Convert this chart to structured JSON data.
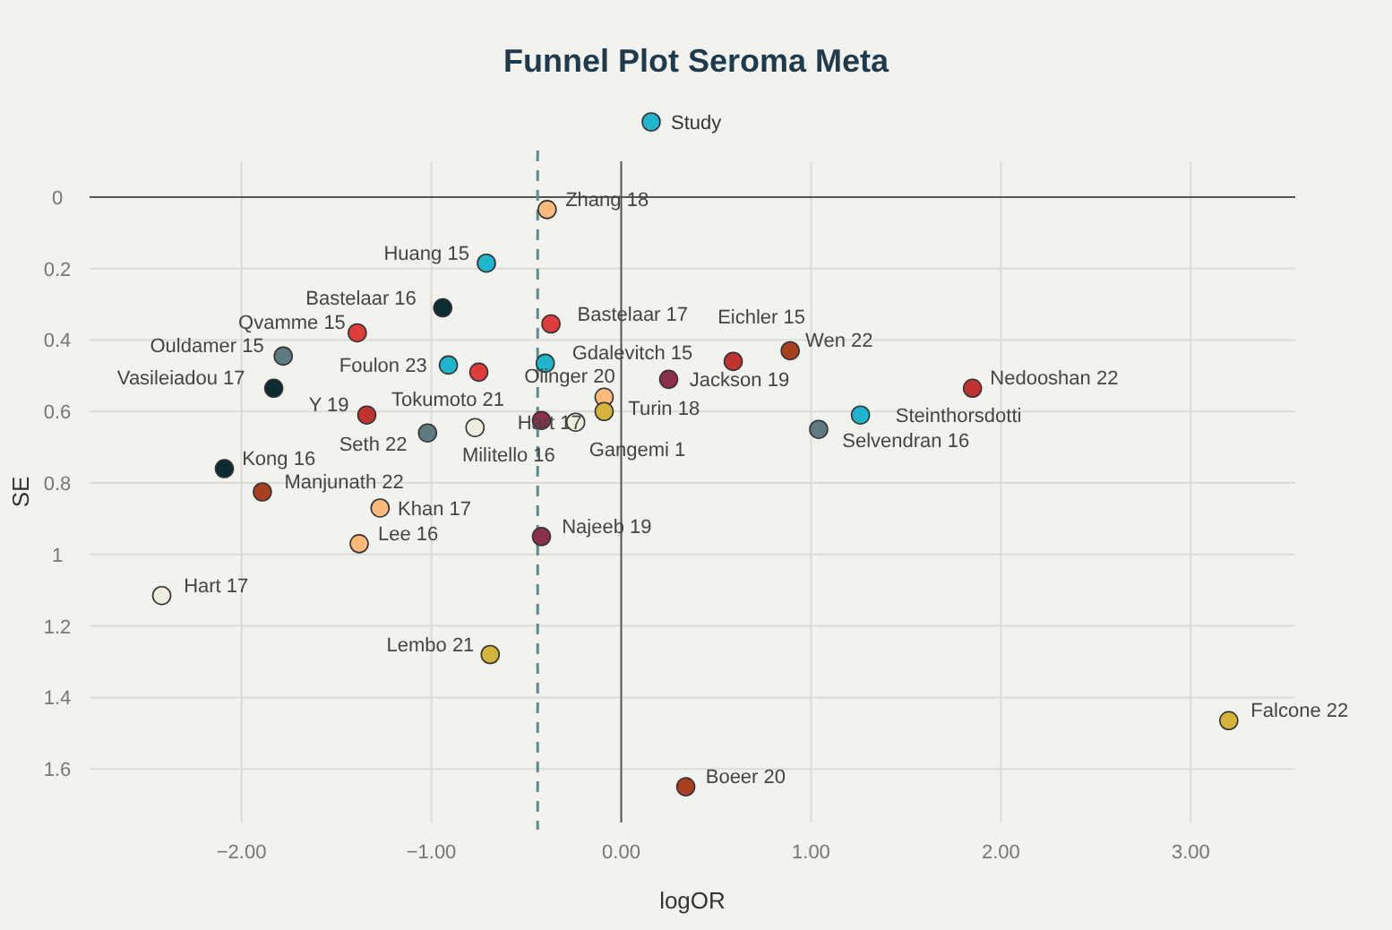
{
  "chart_data": {
    "type": "scatter",
    "title": "Funnel Plot Seroma Meta",
    "xlabel": "logOR",
    "ylabel": "SE",
    "x": [
      -0.39,
      -0.71,
      -0.94,
      -0.37,
      -1.39,
      -1.78,
      -1.83,
      -0.91,
      -0.75,
      -0.4,
      -1.34,
      -1.02,
      -0.77,
      -0.42,
      -0.24,
      -0.09,
      -0.09,
      0.25,
      0.59,
      0.89,
      1.04,
      1.26,
      1.85,
      -2.09,
      -1.89,
      -1.27,
      -1.38,
      -0.42,
      -2.42,
      -0.69,
      0.34,
      3.2
    ],
    "series": [
      {
        "name": "Study",
        "color": "#1fb5cc",
        "values": [
          0.035,
          0.185,
          0.31,
          0.355,
          0.38,
          0.445,
          0.535,
          0.47,
          0.49,
          0.465,
          0.61,
          0.66,
          0.645,
          0.625,
          0.63,
          0.56,
          0.6,
          0.51,
          0.46,
          0.43,
          0.65,
          0.61,
          0.535,
          0.76,
          0.825,
          0.87,
          0.97,
          0.95,
          1.115,
          1.28,
          1.65,
          1.465
        ],
        "colors": [
          "#ffb97a",
          "#1fb5cc",
          "#0d2b33",
          "#e03c3c",
          "#e03c3c",
          "#5e7b84",
          "#0d2b33",
          "#1fb5cc",
          "#e03c3c",
          "#1fb5cc",
          "#c0332f",
          "#5e7b84",
          "#efeedd",
          "#8e2f4a",
          "#efeedd",
          "#ffb97a",
          "#d4b43a",
          "#8e2f4a",
          "#c0332f",
          "#a8401f",
          "#5e7b84",
          "#1fb5cc",
          "#c0332f",
          "#0d2b33",
          "#a8401f",
          "#ffb97a",
          "#ffb97a",
          "#8e2f4a",
          "#efeedd",
          "#d4b43a",
          "#a8401f",
          "#d4b43a"
        ]
      }
    ],
    "annotations": [
      {
        "text": "Zhang 18",
        "x": -0.39,
        "y": 0.035
      },
      {
        "text": "Huang 15",
        "x": -0.71,
        "y": 0.185
      },
      {
        "text": "Bastelaar 16",
        "x": -0.94,
        "y": 0.31
      },
      {
        "text": "Bastelaar 17",
        "x": -0.37,
        "y": 0.355
      },
      {
        "text": "Qvamme 15",
        "x": -1.39,
        "y": 0.38
      },
      {
        "text": "Ouldamer 15",
        "x": -1.78,
        "y": 0.445
      },
      {
        "text": "Vasileiadou 17",
        "x": -1.83,
        "y": 0.535
      },
      {
        "text": "Foulon 23",
        "x": -0.91,
        "y": 0.47
      },
      {
        "text": "Tokumoto 21",
        "x": -0.75,
        "y": 0.49
      },
      {
        "text": "Gdalevitch 15",
        "x": -0.4,
        "y": 0.465
      },
      {
        "text": "Y 19",
        "x": -1.34,
        "y": 0.61
      },
      {
        "text": "Seth 22",
        "x": -1.02,
        "y": 0.66
      },
      {
        "text": "Militello 16",
        "x": -0.77,
        "y": 0.645
      },
      {
        "text": "Olinger 20",
        "x": -0.42,
        "y": 0.625
      },
      {
        "text": "Gangemi 1",
        "x": -0.24,
        "y": 0.63
      },
      {
        "text": "Turin 18",
        "x": -0.09,
        "y": 0.56
      },
      {
        "text": "Hart 17",
        "x": -0.09,
        "y": 0.6
      },
      {
        "text": "Jackson 19",
        "x": 0.25,
        "y": 0.51
      },
      {
        "text": "Eichler 15",
        "x": 0.59,
        "y": 0.46
      },
      {
        "text": "Wen 22",
        "x": 0.89,
        "y": 0.43
      },
      {
        "text": "Selvendran 16",
        "x": 1.04,
        "y": 0.65
      },
      {
        "text": "Steinthorsdotti",
        "x": 1.26,
        "y": 0.61
      },
      {
        "text": "Nedooshan 22",
        "x": 1.85,
        "y": 0.535
      },
      {
        "text": "Kong 16",
        "x": -2.09,
        "y": 0.76
      },
      {
        "text": "Manjunath 22",
        "x": -1.89,
        "y": 0.825
      },
      {
        "text": "Khan 17",
        "x": -1.27,
        "y": 0.87
      },
      {
        "text": "Lee 16",
        "x": -1.38,
        "y": 0.97
      },
      {
        "text": "Najeeb 19",
        "x": -0.42,
        "y": 0.95
      },
      {
        "text": "Hart 17",
        "x": -2.42,
        "y": 1.115
      },
      {
        "text": "Lembo 21",
        "x": -0.69,
        "y": 1.28
      },
      {
        "text": "Boeer 20",
        "x": 0.34,
        "y": 1.65
      },
      {
        "text": "Falcone 22",
        "x": 3.2,
        "y": 1.465
      }
    ],
    "xlim": [
      -2.8,
      3.55
    ],
    "ylim": [
      1.75,
      -0.1
    ],
    "xticks": [
      {
        "value": -2,
        "label": "−2.00"
      },
      {
        "value": -1,
        "label": "−1.00"
      },
      {
        "value": 0,
        "label": "0.00"
      },
      {
        "value": 1,
        "label": "1.00"
      },
      {
        "value": 2,
        "label": "2.00"
      },
      {
        "value": 3,
        "label": "3.00"
      }
    ],
    "yticks": [
      0,
      0.2,
      0.4,
      0.6,
      0.8,
      1,
      1.2,
      1.4,
      1.6
    ],
    "ref_lines": [
      {
        "axis": "x",
        "value": -0.44,
        "color": "#5e8a8f",
        "line_style": "dashed"
      }
    ],
    "grid": true,
    "legend": "top",
    "marker": "circle"
  }
}
